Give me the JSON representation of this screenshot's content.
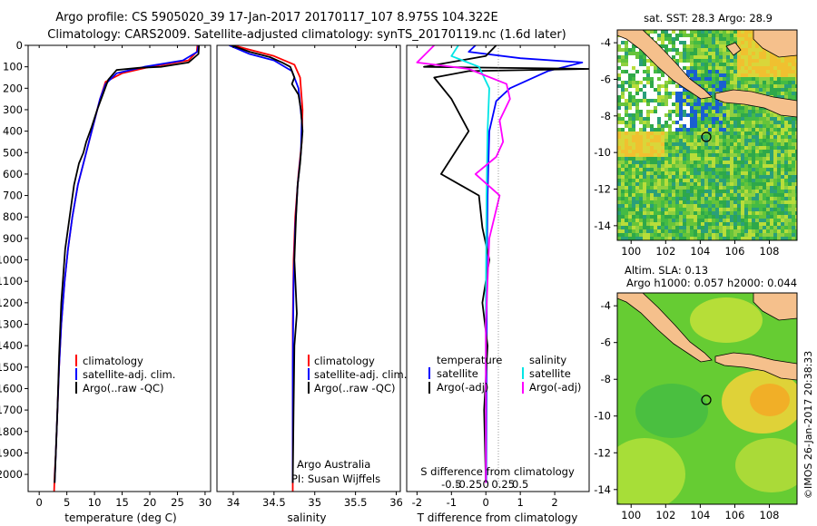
{
  "header": {
    "line1": "Argo profile: CS 5905020_39 17-Jan-2017 20170117_107 8.975S 104.322E",
    "line2": "Climatology: CARS2009. Satellite-adjusted climatology: synTS_20170119.nc (1.6d later)"
  },
  "legend_labels": {
    "climatology": "climatology",
    "satellite_adj": "satellite-adj. clim.",
    "argo_raw": "Argo(..raw -QC)",
    "temperature": "temperature",
    "salinity": "salinity",
    "satellite": "satellite",
    "argo_adj": "Argo(-adj)"
  },
  "panel_text": {
    "argo_australia": "Argo Australia",
    "pi": "PI: Susan Wijffels"
  },
  "map_text": {
    "sst_title": "sat. SST: 28.3 Argo: 28.9",
    "sla_title1": "Altim. SLA: 0.13",
    "sla_title2": "Argo h1000: 0.057 h2000: 0.044",
    "credit": "©IMOS 26-Jan-2017 20:38:33"
  },
  "colors": {
    "climatology": "#ff0000",
    "satellite_adj": "#0000ff",
    "argo": "#000000",
    "satellite_t": "#0000ff",
    "argo_t": "#000000",
    "satellite_s": "#00e5e5",
    "argo_s": "#ff00ff",
    "land": "#f5c08c"
  },
  "chart_data": [
    {
      "type": "line",
      "xlabel": "temperature (deg C)",
      "ylabel": "",
      "xlim": [
        -2,
        31
      ],
      "ylim": [
        2080,
        0
      ],
      "xticks": [
        0,
        5,
        10,
        15,
        20,
        25,
        30
      ],
      "yticks": [
        0,
        100,
        200,
        300,
        400,
        500,
        600,
        700,
        800,
        900,
        1000,
        1100,
        1200,
        1300,
        1400,
        1500,
        1600,
        1700,
        1800,
        1900,
        2000
      ],
      "series": [
        {
          "name": "climatology",
          "color": "#ff0000",
          "x": [
            28.6,
            28.5,
            27,
            20,
            15,
            12,
            11,
            10,
            9,
            8,
            7,
            6,
            5.2,
            4.6,
            4,
            3.6,
            3.3,
            3,
            2.8,
            2.7
          ],
          "y": [
            0,
            30,
            70,
            100,
            130,
            170,
            250,
            350,
            450,
            550,
            650,
            800,
            950,
            1100,
            1300,
            1500,
            1700,
            1900,
            2000,
            2080
          ]
        },
        {
          "name": "satellite-adj. clim.",
          "color": "#0000ff",
          "x": [
            28.8,
            28.6,
            26,
            19,
            14,
            12,
            11,
            10,
            9,
            8,
            7,
            6,
            5.2,
            4.6,
            4,
            3.6,
            3.3,
            3,
            2.8
          ],
          "y": [
            0,
            30,
            70,
            100,
            130,
            180,
            250,
            350,
            450,
            550,
            650,
            800,
            950,
            1100,
            1300,
            1500,
            1700,
            1900,
            2040
          ]
        },
        {
          "name": "Argo(..raw -QC)",
          "color": "#000000",
          "x": [
            28.9,
            28.8,
            27,
            22,
            18,
            14,
            12.5,
            11.5,
            10.5,
            9.5,
            8.5,
            8,
            7.2,
            6.3,
            5.5,
            4.7,
            4,
            3.6,
            3.3,
            3,
            2.8
          ],
          "y": [
            0,
            40,
            80,
            100,
            105,
            115,
            160,
            230,
            300,
            380,
            450,
            500,
            550,
            650,
            800,
            950,
            1200,
            1450,
            1700,
            1900,
            2040
          ]
        }
      ]
    },
    {
      "type": "line",
      "xlabel": "salinity",
      "ylabel": "",
      "xlim": [
        33.8,
        36.05
      ],
      "ylim": [
        2080,
        0
      ],
      "xticks": [
        34,
        34.5,
        35,
        35.5,
        36
      ],
      "series": [
        {
          "name": "climatology",
          "color": "#ff0000",
          "x": [
            34.0,
            34.2,
            34.5,
            34.75,
            34.82,
            34.85,
            34.84,
            34.8,
            34.76,
            34.74,
            34.73,
            34.73,
            34.73
          ],
          "y": [
            0,
            20,
            50,
            90,
            150,
            300,
            450,
            600,
            800,
            1000,
            1300,
            1700,
            2080
          ]
        },
        {
          "name": "satellite-adj. clim.",
          "color": "#0000ff",
          "x": [
            33.95,
            34.2,
            34.5,
            34.72,
            34.8,
            34.84,
            34.83,
            34.79,
            34.76,
            34.74,
            34.73,
            34.73
          ],
          "y": [
            0,
            40,
            70,
            120,
            200,
            350,
            500,
            650,
            850,
            1100,
            1500,
            2040
          ]
        },
        {
          "name": "Argo(..raw -QC)",
          "color": "#000000",
          "x": [
            33.98,
            34.2,
            34.45,
            34.6,
            34.7,
            34.75,
            34.72,
            34.8,
            34.83,
            34.85,
            34.82,
            34.79,
            34.77,
            34.75,
            34.78,
            34.75,
            34.74,
            34.73
          ],
          "y": [
            0,
            30,
            55,
            80,
            100,
            150,
            180,
            230,
            300,
            400,
            550,
            650,
            800,
            1000,
            1250,
            1400,
            1700,
            2040
          ]
        }
      ]
    },
    {
      "type": "line",
      "xlabel": "T difference from climatology",
      "title": "S difference from climatology",
      "xlim": [
        -2.3,
        3
      ],
      "ylim": [
        2080,
        0
      ],
      "xticks": [
        -2,
        -1,
        0,
        1,
        2
      ],
      "top_ticks": [
        "-0.5",
        "-0.25",
        "0",
        "0.25",
        "0.5"
      ],
      "series": [
        {
          "name": "satellite (temperature)",
          "color": "#0000ff",
          "x": [
            -0.3,
            -0.5,
            1.0,
            2.8,
            1.8,
            0.7,
            0.3,
            0.1,
            0.05,
            0.03,
            0.02,
            0.01
          ],
          "y": [
            0,
            30,
            60,
            80,
            120,
            200,
            260,
            400,
            700,
            1000,
            1500,
            2040
          ]
        },
        {
          "name": "Argo(-adj) (temperature)",
          "color": "#000000",
          "x": [
            0.3,
            0.0,
            -1.8,
            3.0,
            -0.5,
            -1.5,
            -1.0,
            -0.5,
            -1.3,
            -0.2,
            -0.1,
            0.1,
            -0.1,
            0.05,
            -0.05,
            0.0
          ],
          "y": [
            0,
            50,
            100,
            110,
            120,
            150,
            250,
            400,
            600,
            700,
            850,
            1000,
            1200,
            1400,
            1700,
            2040
          ]
        },
        {
          "name": "satellite (salinity)",
          "color": "#00e5e5",
          "x": [
            -0.8,
            -1.0,
            -0.2,
            0.1,
            0.05,
            0.02,
            0.0,
            0.0
          ],
          "y": [
            0,
            50,
            100,
            200,
            400,
            700,
            1200,
            2040
          ]
        },
        {
          "name": "Argo(-adj) (salinity)",
          "color": "#ff00ff",
          "x": [
            -1.5,
            -2.0,
            -0.5,
            0.6,
            0.7,
            0.4,
            0.5,
            0.3,
            -0.3,
            0.4,
            0.1,
            0.0,
            0.0
          ],
          "y": [
            0,
            80,
            110,
            180,
            250,
            350,
            450,
            520,
            600,
            700,
            900,
            1300,
            2040
          ]
        }
      ]
    },
    {
      "type": "heatmap",
      "title": "sat. SST: 28.3 Argo: 28.9",
      "xlim": [
        99.2,
        109.6
      ],
      "ylim": [
        -14.8,
        -3.3
      ],
      "xticks": [
        100,
        102,
        104,
        106,
        108
      ],
      "yticks": [
        -4,
        -6,
        -8,
        -10,
        -12,
        -14
      ],
      "argo_position": {
        "lon": 104.322,
        "lat": -8.975
      }
    },
    {
      "type": "heatmap",
      "title": "Altim. SLA: 0.13",
      "xlim": [
        99.2,
        109.6
      ],
      "ylim": [
        -14.8,
        -3.3
      ],
      "xticks": [
        100,
        102,
        104,
        106,
        108
      ],
      "yticks": [
        -4,
        -6,
        -8,
        -10,
        -12,
        -14
      ],
      "argo_position": {
        "lon": 104.322,
        "lat": -8.975
      }
    }
  ]
}
